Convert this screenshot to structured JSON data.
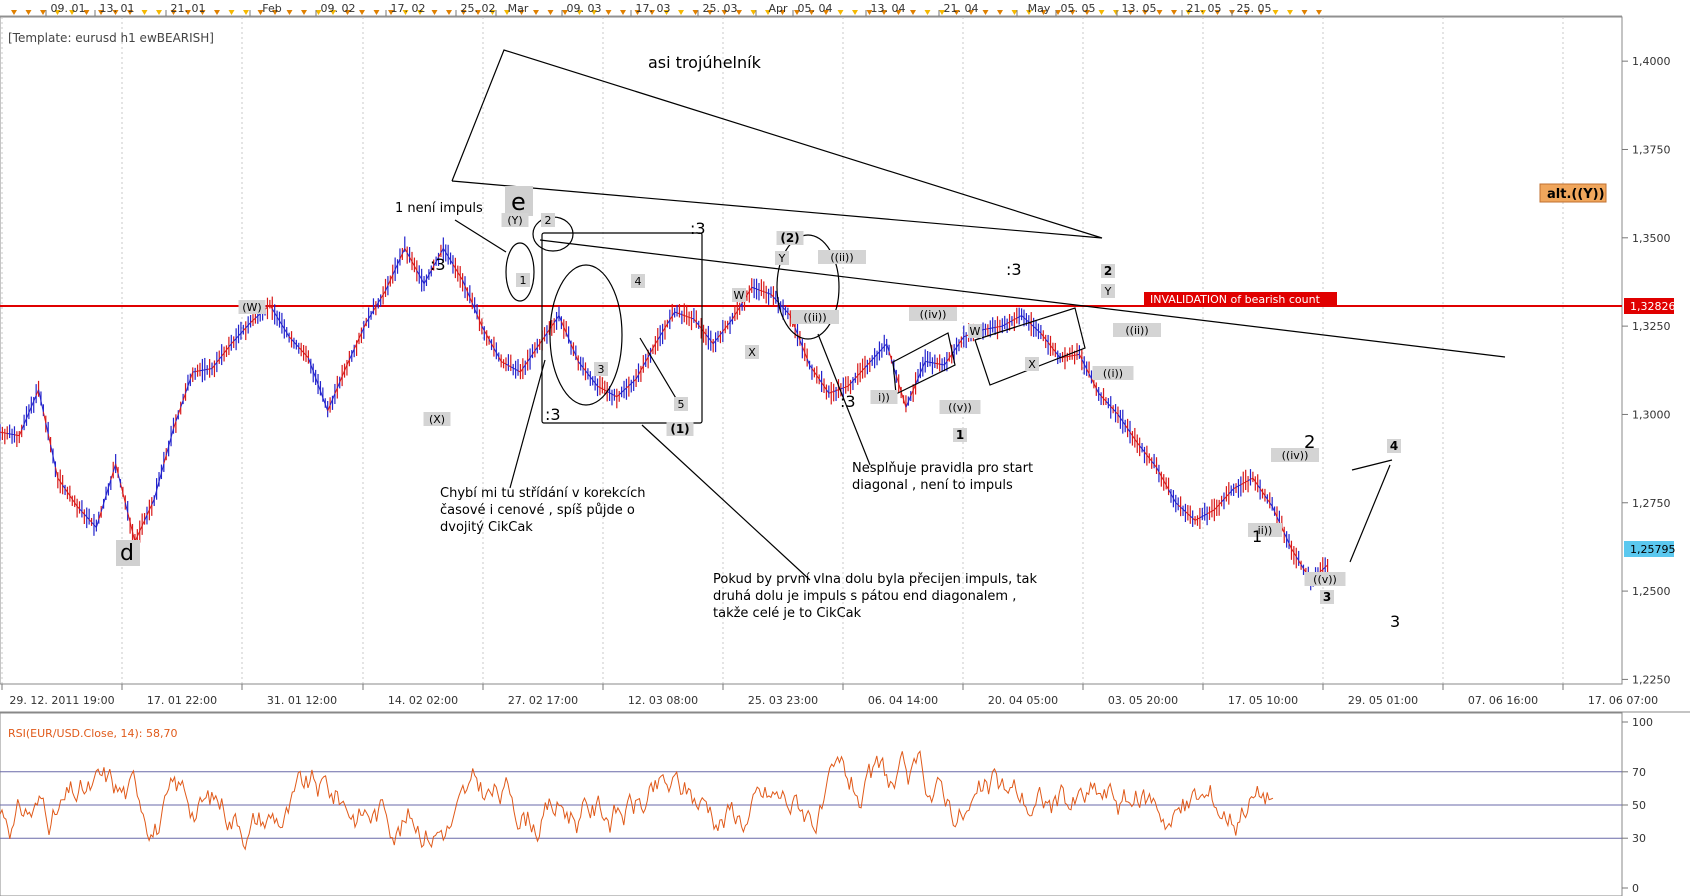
{
  "chart_data": {
    "type": "line",
    "template_label": "[Template: eurusd h1 ewBEARISH]",
    "top_date_ticks": [
      "09. 01",
      "13. 01",
      "21. 01",
      "Feb",
      "09. 02",
      "17. 02",
      "25. 02",
      "Mar",
      "09. 03",
      "17. 03",
      "25. 03",
      "Apr",
      "05. 04",
      "13. 04",
      "21. 04",
      "May",
      "05. 05",
      "13. 05",
      "21. 05",
      "25. 05"
    ],
    "bottom_date_ticks": [
      "29. 12. 2011 19:00",
      "17. 01 22:00",
      "31. 01 12:00",
      "14. 02 02:00",
      "27. 02 17:00",
      "12. 03 08:00",
      "25. 03 23:00",
      "06. 04 14:00",
      "20. 04 05:00",
      "03. 05 20:00",
      "17. 05 10:00",
      "29. 05 01:00",
      "07. 06 16:00",
      "17. 06 07:00"
    ],
    "price_axis": {
      "ticks": [
        "1,4000",
        "1,3750",
        "1,3500",
        "1,3250",
        "1,3000",
        "1,2750",
        "1,2500",
        "1,2250"
      ],
      "ylim": [
        1.2237,
        1.4125
      ],
      "current_price_label": "1,25795",
      "current_price": 1.25795,
      "level_label": "1,32826",
      "level_price": 1.32826
    },
    "price_series": {
      "name": "EUR/USD",
      "points": [
        [
          "29. 12. 2011",
          1.295
        ],
        [
          "30. 12",
          1.294
        ],
        [
          "03. 01",
          1.307
        ],
        [
          "05. 01",
          1.282
        ],
        [
          "09. 01",
          1.274
        ],
        [
          "13. 01",
          1.268
        ],
        [
          "17. 01",
          1.286
        ],
        [
          "18. 01",
          1.264
        ],
        [
          "21. 01",
          1.276
        ],
        [
          "24. 01",
          1.296
        ],
        [
          "27. 01",
          1.312
        ],
        [
          "31. 01",
          1.313
        ],
        [
          "03. 02",
          1.32
        ],
        [
          "06. 02",
          1.326
        ],
        [
          "09. 02",
          1.331
        ],
        [
          "10. 02",
          1.322
        ],
        [
          "14. 02",
          1.316
        ],
        [
          "16. 02",
          1.301
        ],
        [
          "17. 02",
          1.314
        ],
        [
          "21. 02",
          1.326
        ],
        [
          "23. 02",
          1.335
        ],
        [
          "25. 02",
          1.347
        ],
        [
          "27. 02",
          1.337
        ],
        [
          "28. 02",
          1.347
        ],
        [
          "29. 02",
          1.338
        ],
        [
          "02. 03",
          1.325
        ],
        [
          "06. 03",
          1.315
        ],
        [
          "07. 03",
          1.312
        ],
        [
          "08. 03",
          1.32
        ],
        [
          "09. 03",
          1.328
        ],
        [
          "12. 03",
          1.315
        ],
        [
          "14. 03",
          1.308
        ],
        [
          "16. 03",
          1.305
        ],
        [
          "17. 03",
          1.31
        ],
        [
          "19. 03",
          1.32
        ],
        [
          "21. 03",
          1.329
        ],
        [
          "23. 03",
          1.327
        ],
        [
          "25. 03",
          1.32
        ],
        [
          "27. 03",
          1.327
        ],
        [
          "30. 03",
          1.336
        ],
        [
          "02. 04",
          1.334
        ],
        [
          "04. 04",
          1.328
        ],
        [
          "05. 04",
          1.314
        ],
        [
          "06. 04",
          1.306
        ],
        [
          "09. 04",
          1.308
        ],
        [
          "11. 04",
          1.314
        ],
        [
          "13. 04",
          1.32
        ],
        [
          "15. 04",
          1.302
        ],
        [
          "17. 04",
          1.315
        ],
        [
          "19. 04",
          1.314
        ],
        [
          "21. 04",
          1.322
        ],
        [
          "24. 04",
          1.324
        ],
        [
          "26. 04",
          1.325
        ],
        [
          "30. 04",
          1.328
        ],
        [
          "01. 05",
          1.323
        ],
        [
          "02. 05",
          1.316
        ],
        [
          "03. 05",
          1.317
        ],
        [
          "04. 05",
          1.306
        ],
        [
          "06. 05",
          1.3
        ],
        [
          "09. 05",
          1.292
        ],
        [
          "11. 05",
          1.285
        ],
        [
          "14. 05",
          1.275
        ],
        [
          "16. 05",
          1.27
        ],
        [
          "17. 05",
          1.273
        ],
        [
          "18. 05",
          1.279
        ],
        [
          "20. 05",
          1.282
        ],
        [
          "21. 05",
          1.274
        ],
        [
          "22. 05",
          1.262
        ],
        [
          "23. 05",
          1.253
        ],
        [
          "24. 05",
          1.258
        ]
      ]
    },
    "annotations": {
      "title": "asi trojúhelník",
      "alt_label": "alt.((Y))",
      "invalidation": "INVALIDATION of bearish count",
      "note_impulse": "1 není impuls",
      "big_e": "e",
      "big_d": "d",
      "colon3_a": ":3",
      "colon3_b": ":3",
      "colon3_c": ":3",
      "colon3_d": ":3",
      "colon3_e": ":3",
      "note_alternation": "Chybí mi tu střídání v korekcích\nčasové i cenové , spíš půjde o\ndvojitý CikCak",
      "note_diagonal": "Nesplňuje pravidla pro start\ndiagonal , není to impuls",
      "note_cikcak": "Pokud by první vlna dolu byla přecijen impuls, tak\ndruhá dolu je impuls s pátou end diagonalem ,\ntakže celé je to CikCak",
      "wave_labels": {
        "W1": "(W)",
        "X1": "(X)",
        "Y1": "(Y)",
        "n1": "1",
        "n2": "2",
        "n3": "3",
        "n4": "4",
        "n5": "5",
        "p1": "(1)",
        "Wlow": "W",
        "Xlow": "X",
        "p2": "(2)",
        "Yb": "Y",
        "ii_a": "((ii))",
        "ii_b": "((ii))",
        "iv": "((iv))",
        "i": "i))",
        "v": "((v))",
        "b1": "1",
        "W2": "W",
        "X2": "X",
        "n2b": "2",
        "Y2": "Y",
        "ii_c": "((ii))",
        "i_c": "((i))",
        "big2": "2",
        "big1": "1",
        "ii_small": "ii))",
        "iv_c": "((iv))",
        "v_c": "((v))",
        "n3b": "3",
        "n4b": "4",
        "big3": "3"
      }
    }
  },
  "rsi_data": {
    "label": "RSI(EUR/USD.Close, 14): 58,70",
    "ticks": [
      "100",
      "70",
      "50",
      "30",
      "0"
    ],
    "levels": [
      70,
      50,
      30
    ],
    "last_value": 58.7
  }
}
